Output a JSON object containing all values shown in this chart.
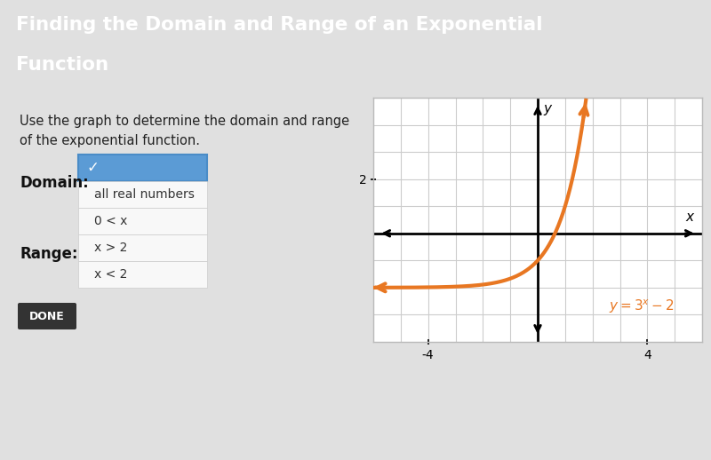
{
  "title_line1": "Finding the Domain and Range of an Exponential",
  "title_line2": "Function",
  "title_bg": "#4d4d5e",
  "title_color": "#ffffff",
  "body_bg": "#ffffff",
  "outer_bg": "#e0e0e0",
  "body_text": "Use the graph to determine the domain and range\nof the exponential function.",
  "domain_label": "Domain:",
  "range_label": "Range:",
  "done_label": "DONE",
  "done_bg": "#333333",
  "done_color": "#ffffff",
  "dropdown_check": "✓",
  "dropdown_selected_bg": "#5b9bd5",
  "dropdown_selected_border": "#4a8cc7",
  "dropdown_options": [
    "all real numbers",
    "0 < x",
    "x > 2",
    "x < 2"
  ],
  "dropdown_bg": "#f0f0f0",
  "graph_bg": "#ffffff",
  "curve_color": "#e87722",
  "equation_color": "#e87722",
  "axis_color": "#000000",
  "grid_color": "#cccccc",
  "xlabel": "x",
  "ylabel": "y",
  "xmin": -6,
  "xmax": 6,
  "ymin": -4,
  "ymax": 5,
  "curve_lw": 3.0
}
